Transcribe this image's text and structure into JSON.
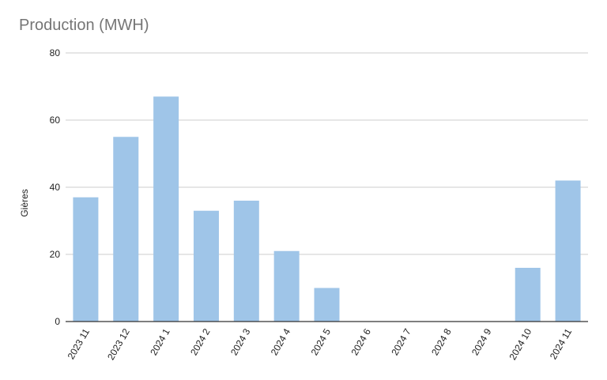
{
  "chart_data": {
    "type": "bar",
    "title": "Production (MWH)",
    "xlabel": "",
    "ylabel": "Gières",
    "categories": [
      "2023 11",
      "2023 12",
      "2024 1",
      "2024 2",
      "2024 3",
      "2024 4",
      "2024 5",
      "2024 6",
      "2024 7",
      "2024 8",
      "2024 9",
      "2024 10",
      "2024 11"
    ],
    "series": [
      {
        "values": [
          37,
          55,
          67,
          33,
          36,
          21,
          10,
          0,
          0,
          0,
          0,
          16,
          42
        ]
      }
    ],
    "ylim": [
      0,
      80
    ],
    "yticks": [
      0,
      20,
      40,
      60,
      80
    ],
    "grid": true,
    "legend": "none",
    "bar_color": "#9fc5e8",
    "grid_color": "#cccccc",
    "axis_color": "#333333"
  }
}
